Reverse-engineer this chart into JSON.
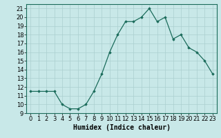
{
  "x": [
    0,
    1,
    2,
    3,
    4,
    5,
    6,
    7,
    8,
    9,
    10,
    11,
    12,
    13,
    14,
    15,
    16,
    17,
    18,
    19,
    20,
    21,
    22,
    23
  ],
  "y": [
    11.5,
    11.5,
    11.5,
    11.5,
    10.0,
    9.5,
    9.5,
    10.0,
    11.5,
    13.5,
    16.0,
    18.0,
    19.5,
    19.5,
    20.0,
    21.0,
    19.5,
    20.0,
    17.5,
    18.0,
    16.5,
    16.0,
    15.0,
    13.5
  ],
  "xlabel": "Humidex (Indice chaleur)",
  "bg_color": "#c8e8e8",
  "line_color": "#1a6b5a",
  "marker_color": "#1a6b5a",
  "grid_color": "#aacfcf",
  "xlim": [
    -0.5,
    23.5
  ],
  "ylim": [
    9.0,
    21.5
  ],
  "yticks": [
    9,
    10,
    11,
    12,
    13,
    14,
    15,
    16,
    17,
    18,
    19,
    20,
    21
  ],
  "xtick_labels": [
    "0",
    "1",
    "2",
    "3",
    "4",
    "5",
    "6",
    "7",
    "8",
    "9",
    "10",
    "11",
    "12",
    "13",
    "14",
    "15",
    "16",
    "17",
    "18",
    "19",
    "20",
    "21",
    "22",
    "23"
  ],
  "tick_fontsize": 6,
  "xlabel_fontsize": 7
}
